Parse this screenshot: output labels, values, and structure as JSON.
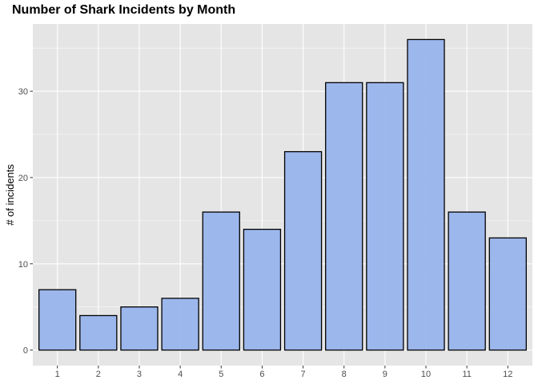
{
  "chart_data": {
    "type": "bar",
    "title": "Number of Shark Incidents by Month",
    "xlabel": "",
    "ylabel": "# of incidents",
    "categories": [
      "1",
      "2",
      "3",
      "4",
      "5",
      "6",
      "7",
      "8",
      "9",
      "10",
      "11",
      "12"
    ],
    "values": [
      7,
      4,
      5,
      6,
      16,
      14,
      23,
      31,
      31,
      36,
      16,
      13
    ],
    "ylim": [
      -1.8,
      37.8
    ],
    "yticks": [
      0,
      10,
      20,
      30
    ],
    "grid": true,
    "legend": "none",
    "colors": {
      "bar_fill": "#98b4ec",
      "bar_stroke": "#000000",
      "panel_bg": "#e5e5e5",
      "grid_major": "#ffffff",
      "tick_text": "#4d4d4d"
    }
  }
}
